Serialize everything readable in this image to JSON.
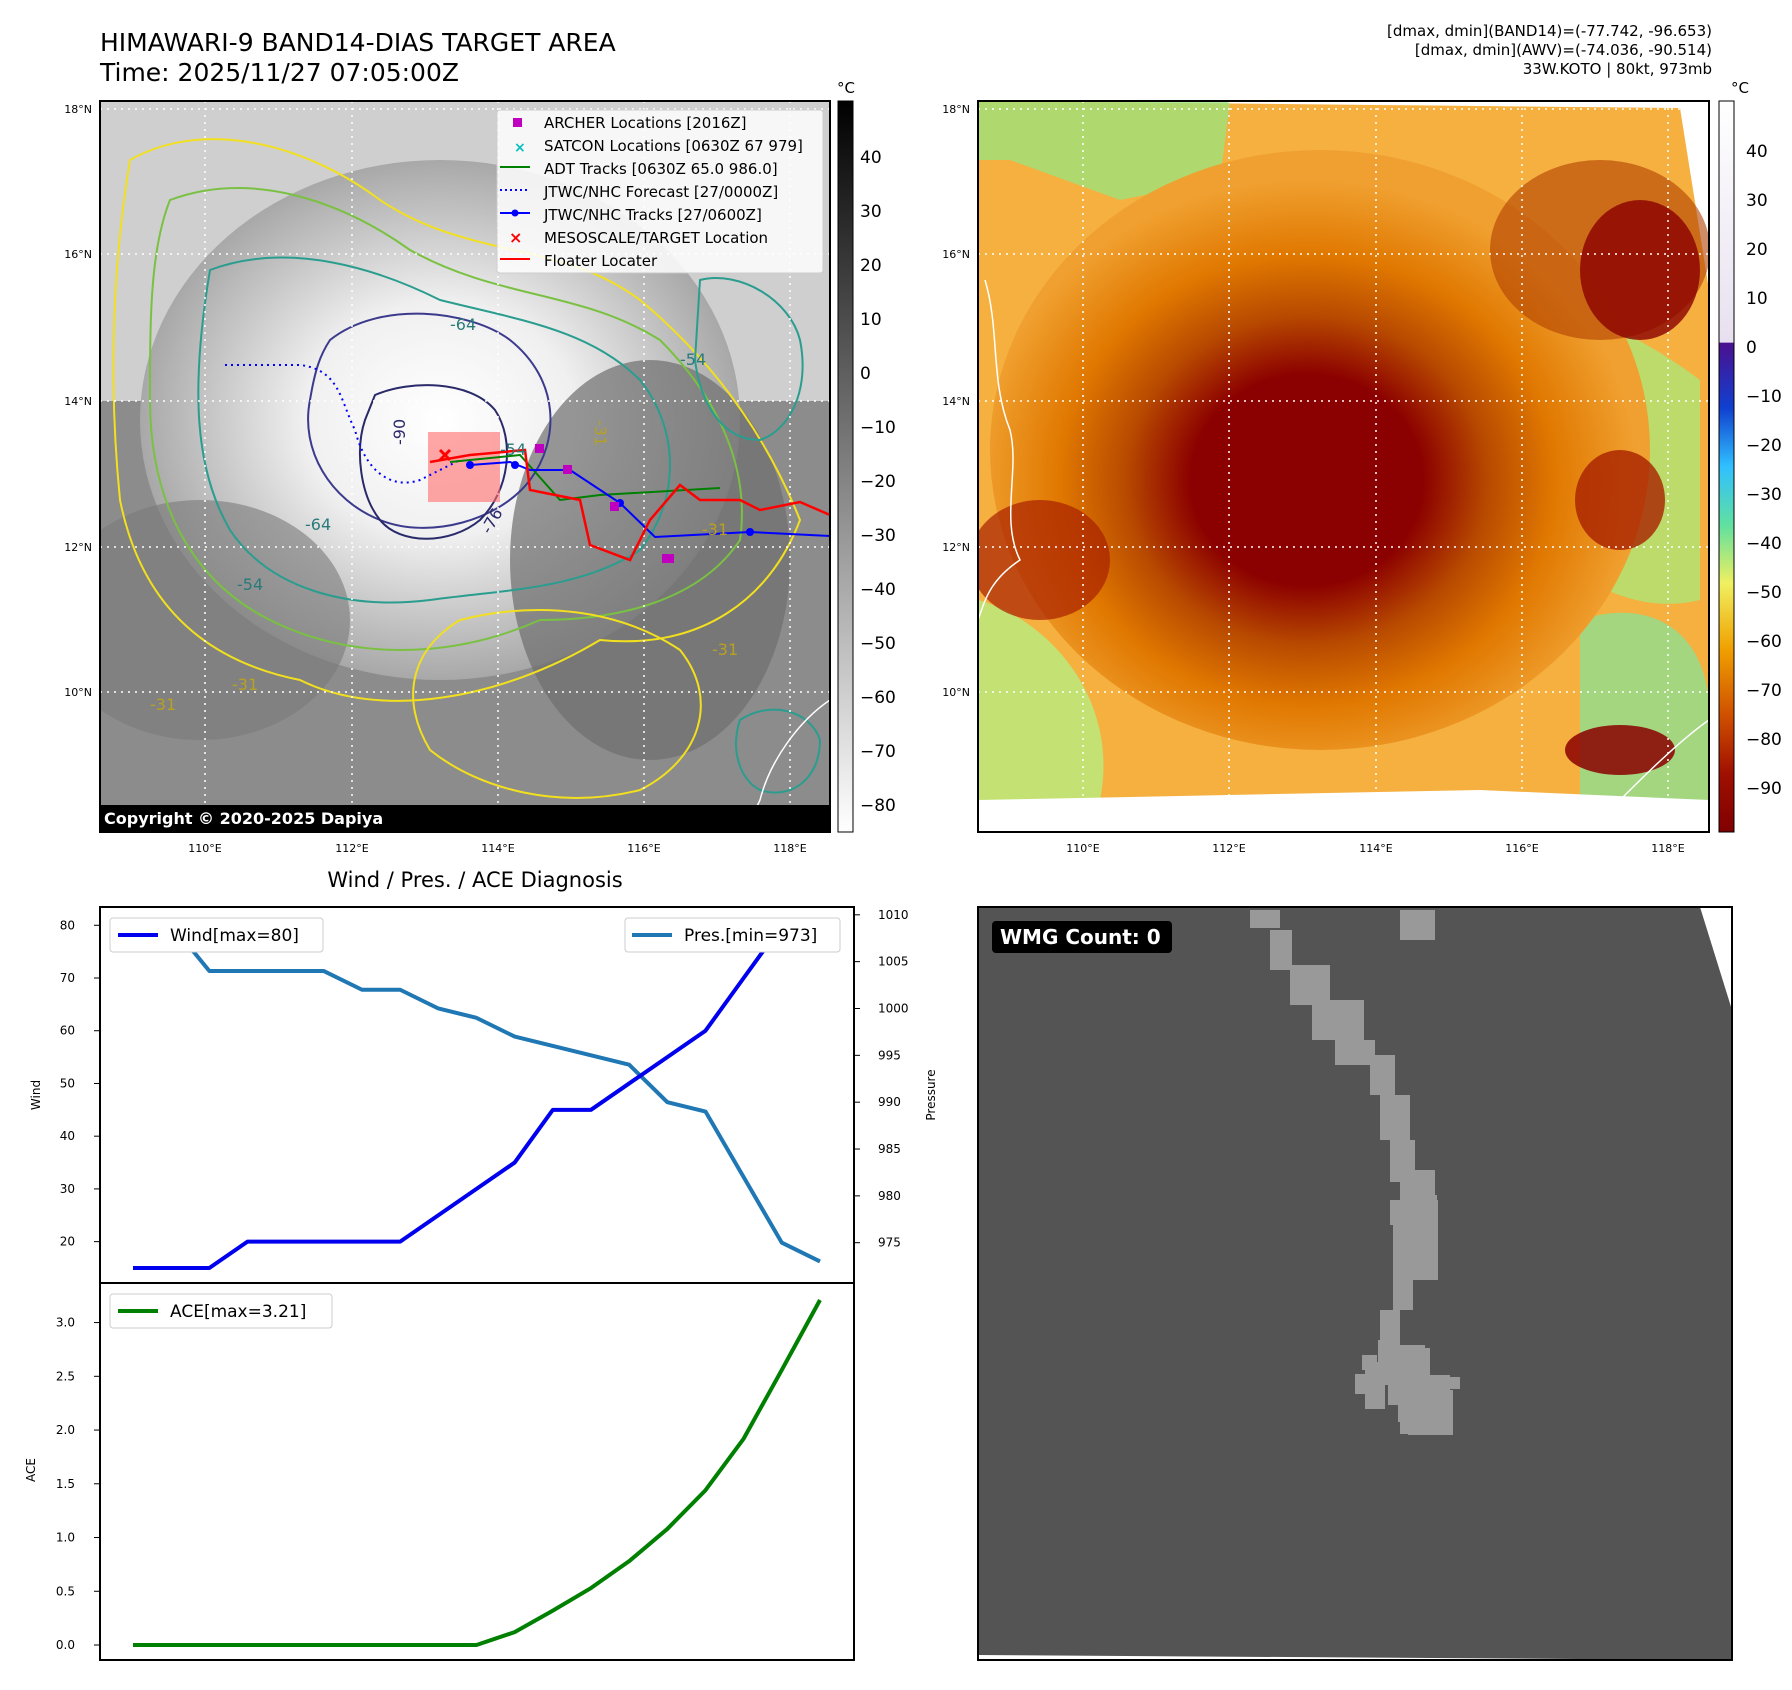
{
  "header": {
    "title_line1": "HIMAWARI-9 BAND14-DIAS TARGET AREA",
    "title_line2": "Time: 2025/11/27 07:05:00Z",
    "stat_line1": "[dmax, dmin](BAND14)=(-77.742, -96.653)",
    "stat_line2": "[dmax, dmin](AWV)=(-74.036, -90.514)",
    "stat_line3": "33W.KOTO | 80kt, 973mb"
  },
  "map": {
    "lat_labels": [
      "18°N",
      "16°N",
      "14°N",
      "12°N",
      "10°N"
    ],
    "lon_labels": [
      "110°E",
      "112°E",
      "114°E",
      "116°E",
      "118°E"
    ],
    "copyright": "Copyright © 2020-2025 Dapiya",
    "contour_labels": [
      "-64",
      "-54",
      "-90",
      "-76",
      "-64",
      "-54",
      "-31",
      "-31",
      "-31",
      "-54",
      "-31",
      "-31",
      "0"
    ],
    "legend": [
      {
        "label": "ARCHER Locations [2016Z]",
        "color": "#bf00bf",
        "symbol": "square"
      },
      {
        "label": "SATCON Locations [0630Z 67 979]",
        "color": "#00bfbf",
        "symbol": "x"
      },
      {
        "label": "ADT Tracks [0630Z 65.0 986.0]",
        "color": "#008000",
        "symbol": "line"
      },
      {
        "label": "JTWC/NHC Forecast [27/0000Z]",
        "color": "#0000ff",
        "symbol": "dotted"
      },
      {
        "label": "JTWC/NHC Tracks [27/0600Z]",
        "color": "#0000ff",
        "symbol": "line-dot"
      },
      {
        "label": "MESOSCALE/TARGET Location",
        "color": "#ff0000",
        "symbol": "x"
      },
      {
        "label": "Floater Locater",
        "color": "#ff0000",
        "symbol": "line"
      }
    ],
    "colorbar1": {
      "unit": "°C",
      "ticks": [
        "40",
        "30",
        "20",
        "10",
        "0",
        "−10",
        "−20",
        "−30",
        "−40",
        "−50",
        "−60",
        "−70",
        "−80"
      ]
    },
    "colorbar2": {
      "unit": "°C",
      "ticks": [
        "40",
        "30",
        "20",
        "10",
        "0",
        "−10",
        "−20",
        "−30",
        "−40",
        "−50",
        "−60",
        "−70",
        "−80",
        "−90"
      ]
    }
  },
  "chart_data": [
    {
      "type": "line",
      "title": "Wind / Pres. / ACE Diagnosis",
      "x": [
        0,
        1,
        2,
        3,
        4,
        5,
        6,
        7,
        8,
        9,
        10,
        11,
        12,
        13,
        14,
        15,
        16,
        17,
        18
      ],
      "series": [
        {
          "name": "Wind[max=80]",
          "axis": "left",
          "color": "#0000ee",
          "values": [
            15,
            15,
            15,
            20,
            20,
            20,
            20,
            20,
            25,
            30,
            35,
            45,
            45,
            50,
            55,
            60,
            70,
            80,
            80
          ]
        },
        {
          "name": "Pres.[min=973]",
          "axis": "right",
          "color": "#1f77b4",
          "values": [
            1009,
            1009,
            1004,
            1004,
            1004,
            1004,
            1002,
            1002,
            1000,
            999,
            997,
            996,
            995,
            994,
            990,
            989,
            982,
            975,
            973
          ]
        }
      ],
      "ylabel": "Wind",
      "ylim": [
        15,
        81
      ],
      "yticks": [
        "80",
        "70",
        "60",
        "50",
        "40",
        "30",
        "20"
      ],
      "y2label": "Pressure",
      "y2lim": [
        972.3,
        1010.3
      ],
      "y2ticks": [
        "1010",
        "1005",
        "1000",
        "995",
        "990",
        "985",
        "980",
        "975"
      ]
    },
    {
      "type": "line",
      "x": [
        0,
        1,
        2,
        3,
        4,
        5,
        6,
        7,
        8,
        9,
        10,
        11,
        12,
        13,
        14,
        15,
        16,
        17,
        18
      ],
      "series": [
        {
          "name": "ACE[max=3.21]",
          "color": "#008000",
          "values": [
            0,
            0,
            0,
            0,
            0,
            0,
            0,
            0,
            0,
            0,
            0.12,
            0.32,
            0.53,
            0.78,
            1.08,
            1.44,
            1.92,
            2.56,
            3.21
          ]
        }
      ],
      "ylabel": "ACE",
      "ylim": [
        -0.15,
        3.38
      ],
      "yticks": [
        "3.0",
        "2.5",
        "2.0",
        "1.5",
        "1.0",
        "0.5",
        "0.0"
      ]
    }
  ],
  "wmg": {
    "label": "WMG Count: 0"
  }
}
